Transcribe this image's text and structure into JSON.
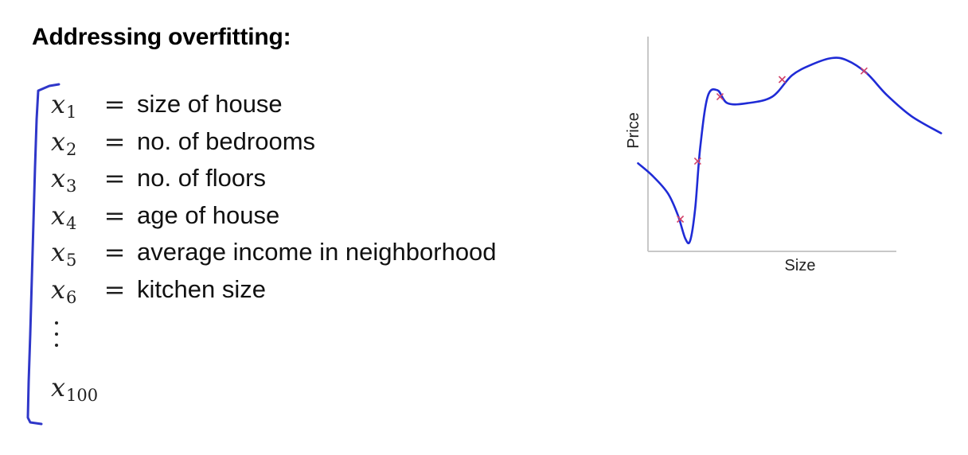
{
  "title": "Addressing overfitting:",
  "features": [
    {
      "var": "x",
      "sub": "1",
      "eq": "=",
      "desc": "size of house"
    },
    {
      "var": "x",
      "sub": "2",
      "eq": "=",
      "desc": "no. of bedrooms"
    },
    {
      "var": "x",
      "sub": "3",
      "eq": "=",
      "desc": "no. of floors"
    },
    {
      "var": "x",
      "sub": "4",
      "eq": "=",
      "desc": "age of house"
    },
    {
      "var": "x",
      "sub": "5",
      "eq": "=",
      "desc": "average income in neighborhood"
    },
    {
      "var": "x",
      "sub": "6",
      "eq": "=",
      "desc": "kitchen size"
    }
  ],
  "last_feature": {
    "var": "x",
    "sub": "100"
  },
  "colors": {
    "curve": "#1f2bd6",
    "bracket": "#2f37c9",
    "points": "#d2436a",
    "axes": "#c8c8c8"
  },
  "chart_data": {
    "type": "scatter",
    "xlabel": "Size",
    "ylabel": "Price",
    "points": [
      {
        "x": 0.13,
        "y": 0.15
      },
      {
        "x": 0.2,
        "y": 0.42
      },
      {
        "x": 0.29,
        "y": 0.72
      },
      {
        "x": 0.54,
        "y": 0.8
      },
      {
        "x": 0.87,
        "y": 0.84
      }
    ],
    "curve": [
      {
        "x": -0.04,
        "y": 0.41
      },
      {
        "x": 0.02,
        "y": 0.35
      },
      {
        "x": 0.08,
        "y": 0.27
      },
      {
        "x": 0.12,
        "y": 0.17
      },
      {
        "x": 0.15,
        "y": 0.06
      },
      {
        "x": 0.17,
        "y": 0.05
      },
      {
        "x": 0.19,
        "y": 0.2
      },
      {
        "x": 0.21,
        "y": 0.48
      },
      {
        "x": 0.24,
        "y": 0.72
      },
      {
        "x": 0.28,
        "y": 0.75
      },
      {
        "x": 0.32,
        "y": 0.69
      },
      {
        "x": 0.4,
        "y": 0.69
      },
      {
        "x": 0.5,
        "y": 0.72
      },
      {
        "x": 0.58,
        "y": 0.82
      },
      {
        "x": 0.66,
        "y": 0.87
      },
      {
        "x": 0.74,
        "y": 0.9
      },
      {
        "x": 0.8,
        "y": 0.89
      },
      {
        "x": 0.88,
        "y": 0.83
      },
      {
        "x": 0.96,
        "y": 0.73
      },
      {
        "x": 1.06,
        "y": 0.63
      },
      {
        "x": 1.18,
        "y": 0.55
      }
    ],
    "grid": false,
    "legend": "none",
    "ticks": false
  }
}
